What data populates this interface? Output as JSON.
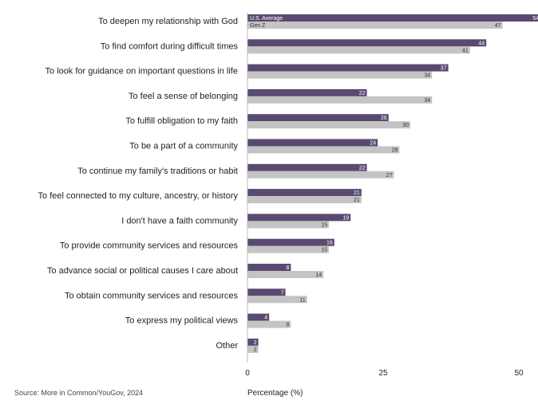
{
  "chart_data": {
    "type": "bar",
    "orientation": "horizontal",
    "categories": [
      "To deepen my relationship with God",
      "To find comfort during difficult times",
      "To look for guidance on important questions in life",
      "To feel a sense of belonging",
      "To fulfill obligation to my faith",
      "To be a part of a community",
      "To continue my family's traditions or habit",
      "To feel connected to my culture, ancestry, or history",
      "I don't have a faith community",
      "To provide community services and resources",
      "To advance social or political causes I care about",
      "To obtain community services and resources",
      "To express my political views",
      "Other"
    ],
    "series": [
      {
        "name": "U.S. Average",
        "color": "#5a4a72",
        "values": [
          54,
          44,
          37,
          22,
          26,
          24,
          22,
          21,
          19,
          16,
          8,
          7,
          4,
          2
        ]
      },
      {
        "name": "Gen Z",
        "color": "#c4c4c4",
        "values": [
          47,
          41,
          34,
          34,
          30,
          28,
          27,
          21,
          15,
          15,
          14,
          11,
          8,
          2
        ]
      }
    ],
    "xlabel": "Percentage (%)",
    "ylabel": "",
    "xlim": [
      0,
      54
    ],
    "xticks": [
      0,
      25,
      50
    ],
    "legend": "inside-top",
    "grid": false,
    "source": "Source: More in Common/YouGov, 2024"
  }
}
